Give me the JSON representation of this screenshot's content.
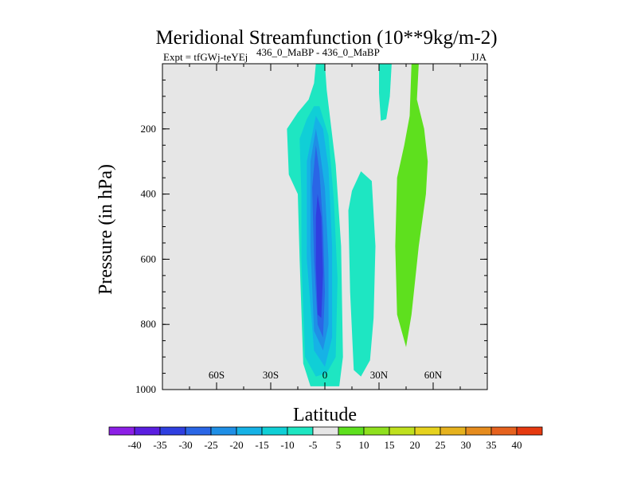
{
  "chart_data": {
    "type": "contour",
    "title": "Meridional Streamfunction (10**9kg/m-2)",
    "left_label": "Expt = tfGWj-teYEj",
    "center_label": "436_0_MaBP - 436_0_MaBP",
    "right_label": "JJA",
    "xlabel": "Latitude",
    "ylabel": "Pressure (in hPa)",
    "xlim": [
      -90,
      90
    ],
    "ylim": [
      1000,
      0
    ],
    "x_ticks": [
      {
        "value": -60,
        "label": "60S"
      },
      {
        "value": -30,
        "label": "30S"
      },
      {
        "value": 0,
        "label": "0"
      },
      {
        "value": 30,
        "label": "30N"
      },
      {
        "value": 60,
        "label": "60N"
      }
    ],
    "y_ticks": [
      {
        "value": 200,
        "label": "200"
      },
      {
        "value": 400,
        "label": "400"
      },
      {
        "value": 600,
        "label": "600"
      },
      {
        "value": 800,
        "label": "800"
      },
      {
        "value": 1000,
        "label": "1000"
      }
    ],
    "colorbar": {
      "levels": [
        "-40",
        "-35",
        "-30",
        "-25",
        "-20",
        "-15",
        "-10",
        "-5",
        "5",
        "10",
        "15",
        "20",
        "25",
        "30",
        "35",
        "40"
      ],
      "colors": [
        "#8c1fe6",
        "#5a1ee0",
        "#2f3fe0",
        "#2a66e6",
        "#1f8fe6",
        "#16b2e6",
        "#10cfd6",
        "#1ee6c2",
        "#e6e6e6",
        "#5ee01e",
        "#8fe01e",
        "#bfe01e",
        "#e6d21e",
        "#e6b21e",
        "#e68c1e",
        "#e6621e",
        "#e63a10"
      ]
    },
    "regions": [
      {
        "level": "-5",
        "color": "#1ee6c2",
        "points": [
          [
            -5,
            0
          ],
          [
            0,
            0
          ],
          [
            1,
            80
          ],
          [
            6,
            310
          ],
          [
            9,
            560
          ],
          [
            10,
            900
          ],
          [
            8,
            990
          ],
          [
            -8,
            990
          ],
          [
            -12,
            920
          ],
          [
            -14,
            600
          ],
          [
            -15,
            400
          ],
          [
            -20,
            340
          ],
          [
            -21,
            200
          ],
          [
            -15,
            150
          ],
          [
            -9,
            110
          ],
          [
            -6,
            60
          ]
        ]
      },
      {
        "level": "-5",
        "color": "#1ee6c2",
        "points": [
          [
            15,
            390
          ],
          [
            20,
            330
          ],
          [
            26,
            360
          ],
          [
            28,
            560
          ],
          [
            27,
            780
          ],
          [
            25,
            910
          ],
          [
            20,
            960
          ],
          [
            16,
            940
          ],
          [
            14,
            700
          ],
          [
            13,
            450
          ]
        ]
      },
      {
        "level": "-5",
        "color": "#1ee6c2",
        "points": [
          [
            30,
            0
          ],
          [
            37,
            0
          ],
          [
            36,
            100
          ],
          [
            34,
            170
          ],
          [
            31,
            175
          ],
          [
            30,
            90
          ]
        ]
      },
      {
        "level": "5",
        "color": "#5ee01e",
        "points": [
          [
            48,
            0
          ],
          [
            52,
            0
          ],
          [
            51,
            110
          ],
          [
            55,
            200
          ],
          [
            57,
            300
          ],
          [
            56,
            400
          ],
          [
            52,
            560
          ],
          [
            48,
            770
          ],
          [
            45,
            870
          ],
          [
            40,
            770
          ],
          [
            39,
            560
          ],
          [
            40,
            350
          ],
          [
            44,
            250
          ],
          [
            47,
            160
          ]
        ]
      },
      {
        "level": "-10",
        "color": "#10cfd6",
        "points": [
          [
            -6,
            130
          ],
          [
            -3,
            130
          ],
          [
            2,
            220
          ],
          [
            5,
            420
          ],
          [
            7,
            660
          ],
          [
            6,
            900
          ],
          [
            1,
            950
          ],
          [
            -5,
            960
          ],
          [
            -11,
            900
          ],
          [
            -13,
            600
          ],
          [
            -13,
            400
          ],
          [
            -14,
            230
          ],
          [
            -10,
            170
          ]
        ]
      },
      {
        "level": "-15",
        "color": "#16b2e6",
        "points": [
          [
            -5,
            160
          ],
          [
            -1,
            200
          ],
          [
            2,
            320
          ],
          [
            4,
            560
          ],
          [
            4,
            840
          ],
          [
            0,
            930
          ],
          [
            -6,
            880
          ],
          [
            -10,
            600
          ],
          [
            -10,
            300
          ]
        ]
      },
      {
        "level": "-20",
        "color": "#1f8fe6",
        "points": [
          [
            -5,
            200
          ],
          [
            -3,
            260
          ],
          [
            0,
            380
          ],
          [
            2,
            600
          ],
          [
            2,
            800
          ],
          [
            -1,
            880
          ],
          [
            -6,
            820
          ],
          [
            -8,
            560
          ],
          [
            -8,
            300
          ]
        ]
      },
      {
        "level": "-25",
        "color": "#2a66e6",
        "points": [
          [
            -5,
            250
          ],
          [
            -3,
            330
          ],
          [
            -1,
            500
          ],
          [
            0,
            700
          ],
          [
            -1,
            840
          ],
          [
            -4,
            800
          ],
          [
            -6,
            600
          ],
          [
            -7,
            380
          ]
        ]
      },
      {
        "level": "-30",
        "color": "#2f3fe0",
        "points": [
          [
            -4,
            400
          ],
          [
            -2,
            470
          ],
          [
            -1,
            640
          ],
          [
            -2,
            780
          ],
          [
            -4,
            770
          ],
          [
            -5,
            620
          ],
          [
            -5,
            470
          ]
        ]
      }
    ]
  }
}
